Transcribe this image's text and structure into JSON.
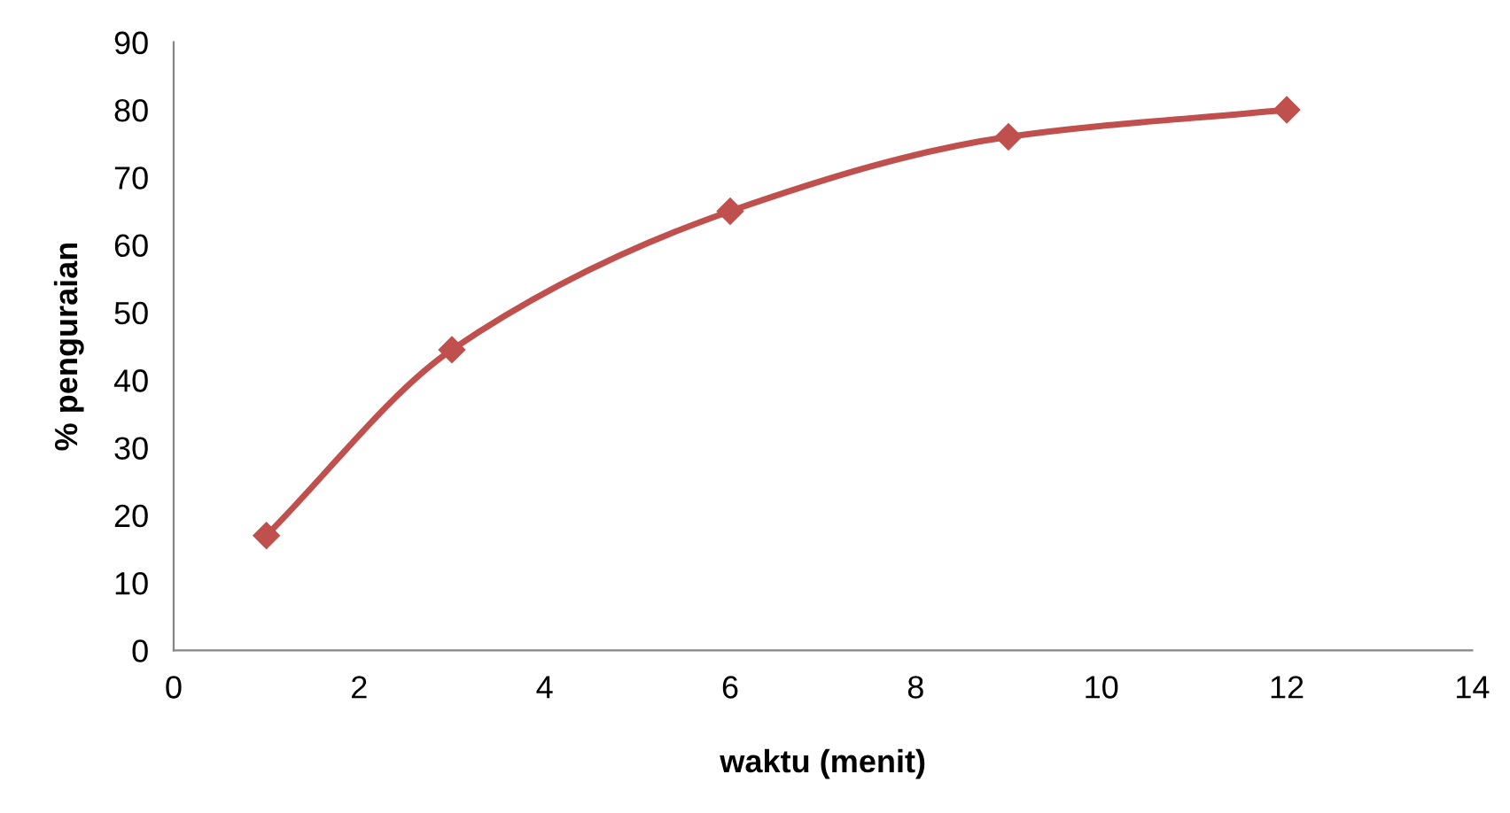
{
  "chart_data": {
    "type": "line",
    "xlabel": "waktu (menit)",
    "ylabel": "% penguraian",
    "x": [
      1,
      3,
      6,
      9,
      12
    ],
    "series": [
      {
        "color": "#c0504d",
        "values": [
          17,
          44.5,
          65,
          76,
          80
        ]
      }
    ],
    "xlim": [
      0,
      14
    ],
    "xticks": [
      0,
      2,
      4,
      6,
      8,
      10,
      12,
      14
    ],
    "ylim": [
      0,
      90
    ],
    "yticks": [
      0,
      10,
      20,
      30,
      40,
      50,
      60,
      70,
      80,
      90
    ],
    "grid": false,
    "legend": false,
    "marker": "diamond",
    "line_style": "solid"
  }
}
